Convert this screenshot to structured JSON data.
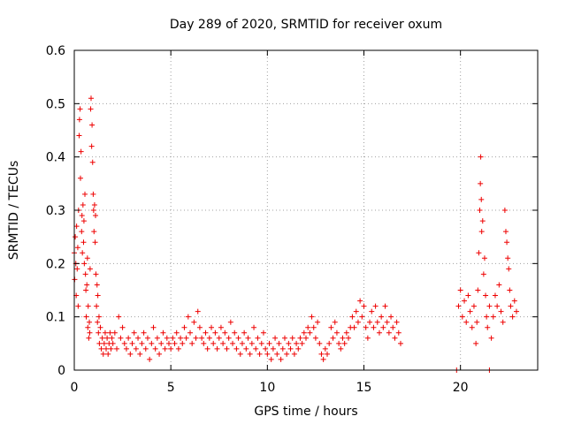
{
  "chart_data": {
    "type": "scatter",
    "title": "Day 289 of 2020, SRMTID for receiver oxum",
    "xlabel": "GPS time / hours",
    "ylabel": "SRMTID / TECUs",
    "xlim": [
      0,
      24
    ],
    "ylim": [
      0,
      0.6
    ],
    "x_ticks": [
      0,
      5,
      10,
      15,
      20
    ],
    "x_tick_labels": [
      "0",
      "5",
      "10",
      "15",
      "20"
    ],
    "y_ticks": [
      0,
      0.1,
      0.2,
      0.3,
      0.4,
      0.5,
      0.6
    ],
    "y_tick_labels": [
      "0",
      "0.1",
      "0.2",
      "0.3",
      "0.4",
      "0.5",
      "0.6"
    ],
    "grid": true,
    "marker": "+",
    "series": [
      {
        "name": "SRMTID",
        "color": "#ee0000",
        "points": [
          [
            0.0,
            0.22
          ],
          [
            0.02,
            0.17
          ],
          [
            0.05,
            0.25
          ],
          [
            0.08,
            0.2
          ],
          [
            0.1,
            0.14
          ],
          [
            0.12,
            0.27
          ],
          [
            0.15,
            0.19
          ],
          [
            0.18,
            0.23
          ],
          [
            0.2,
            0.12
          ],
          [
            0.22,
            0.3
          ],
          [
            0.25,
            0.44
          ],
          [
            0.27,
            0.47
          ],
          [
            0.3,
            0.49
          ],
          [
            0.32,
            0.36
          ],
          [
            0.35,
            0.41
          ],
          [
            0.38,
            0.26
          ],
          [
            0.4,
            0.29
          ],
          [
            0.42,
            0.22
          ],
          [
            0.45,
            0.31
          ],
          [
            0.48,
            0.24
          ],
          [
            0.5,
            0.28
          ],
          [
            0.52,
            0.2
          ],
          [
            0.55,
            0.33
          ],
          [
            0.58,
            0.18
          ],
          [
            0.6,
            0.15
          ],
          [
            0.62,
            0.1
          ],
          [
            0.65,
            0.16
          ],
          [
            0.68,
            0.21
          ],
          [
            0.7,
            0.08
          ],
          [
            0.72,
            0.12
          ],
          [
            0.75,
            0.06
          ],
          [
            0.78,
            0.09
          ],
          [
            0.8,
            0.07
          ],
          [
            0.82,
            0.19
          ],
          [
            0.85,
            0.49
          ],
          [
            0.87,
            0.51
          ],
          [
            0.9,
            0.42
          ],
          [
            0.92,
            0.46
          ],
          [
            0.95,
            0.39
          ],
          [
            0.98,
            0.33
          ],
          [
            1.0,
            0.3
          ],
          [
            1.02,
            0.26
          ],
          [
            1.05,
            0.31
          ],
          [
            1.08,
            0.24
          ],
          [
            1.1,
            0.29
          ],
          [
            1.12,
            0.18
          ],
          [
            1.15,
            0.12
          ],
          [
            1.18,
            0.16
          ],
          [
            1.2,
            0.09
          ],
          [
            1.22,
            0.14
          ],
          [
            1.25,
            0.07
          ],
          [
            1.28,
            0.1
          ],
          [
            1.3,
            0.05
          ],
          [
            1.35,
            0.08
          ],
          [
            1.4,
            0.04
          ],
          [
            1.45,
            0.06
          ],
          [
            1.5,
            0.03
          ],
          [
            1.55,
            0.05
          ],
          [
            1.6,
            0.07
          ],
          [
            1.65,
            0.04
          ],
          [
            1.7,
            0.06
          ],
          [
            1.75,
            0.03
          ],
          [
            1.8,
            0.05
          ],
          [
            1.85,
            0.07
          ],
          [
            1.9,
            0.04
          ],
          [
            1.95,
            0.06
          ],
          [
            2.0,
            0.05
          ],
          [
            2.1,
            0.07
          ],
          [
            2.2,
            0.04
          ],
          [
            2.3,
            0.1
          ],
          [
            2.4,
            0.06
          ],
          [
            2.5,
            0.08
          ],
          [
            2.6,
            0.05
          ],
          [
            2.7,
            0.04
          ],
          [
            2.8,
            0.06
          ],
          [
            2.9,
            0.03
          ],
          [
            3.0,
            0.05
          ],
          [
            3.1,
            0.07
          ],
          [
            3.2,
            0.04
          ],
          [
            3.3,
            0.06
          ],
          [
            3.4,
            0.03
          ],
          [
            3.5,
            0.05
          ],
          [
            3.6,
            0.07
          ],
          [
            3.7,
            0.04
          ],
          [
            3.8,
            0.06
          ],
          [
            3.9,
            0.02
          ],
          [
            4.0,
            0.05
          ],
          [
            4.1,
            0.08
          ],
          [
            4.2,
            0.04
          ],
          [
            4.3,
            0.06
          ],
          [
            4.4,
            0.03
          ],
          [
            4.5,
            0.05
          ],
          [
            4.6,
            0.07
          ],
          [
            4.7,
            0.04
          ],
          [
            4.8,
            0.06
          ],
          [
            4.9,
            0.05
          ],
          [
            5.0,
            0.04
          ],
          [
            5.1,
            0.06
          ],
          [
            5.2,
            0.05
          ],
          [
            5.3,
            0.07
          ],
          [
            5.4,
            0.04
          ],
          [
            5.5,
            0.06
          ],
          [
            5.6,
            0.05
          ],
          [
            5.7,
            0.08
          ],
          [
            5.8,
            0.06
          ],
          [
            5.9,
            0.1
          ],
          [
            6.0,
            0.07
          ],
          [
            6.1,
            0.05
          ],
          [
            6.2,
            0.09
          ],
          [
            6.3,
            0.06
          ],
          [
            6.4,
            0.11
          ],
          [
            6.5,
            0.08
          ],
          [
            6.6,
            0.06
          ],
          [
            6.7,
            0.05
          ],
          [
            6.8,
            0.07
          ],
          [
            6.9,
            0.04
          ],
          [
            7.0,
            0.06
          ],
          [
            7.1,
            0.08
          ],
          [
            7.2,
            0.05
          ],
          [
            7.3,
            0.07
          ],
          [
            7.4,
            0.04
          ],
          [
            7.5,
            0.06
          ],
          [
            7.6,
            0.08
          ],
          [
            7.7,
            0.05
          ],
          [
            7.8,
            0.07
          ],
          [
            7.9,
            0.04
          ],
          [
            8.0,
            0.06
          ],
          [
            8.1,
            0.09
          ],
          [
            8.2,
            0.05
          ],
          [
            8.3,
            0.07
          ],
          [
            8.4,
            0.04
          ],
          [
            8.5,
            0.06
          ],
          [
            8.6,
            0.03
          ],
          [
            8.7,
            0.05
          ],
          [
            8.8,
            0.07
          ],
          [
            8.9,
            0.04
          ],
          [
            9.0,
            0.06
          ],
          [
            9.1,
            0.03
          ],
          [
            9.2,
            0.05
          ],
          [
            9.3,
            0.08
          ],
          [
            9.4,
            0.04
          ],
          [
            9.5,
            0.06
          ],
          [
            9.6,
            0.03
          ],
          [
            9.7,
            0.05
          ],
          [
            9.8,
            0.07
          ],
          [
            9.9,
            0.04
          ],
          [
            10.0,
            0.03
          ],
          [
            10.1,
            0.05
          ],
          [
            10.2,
            0.02
          ],
          [
            10.3,
            0.04
          ],
          [
            10.4,
            0.06
          ],
          [
            10.5,
            0.03
          ],
          [
            10.6,
            0.05
          ],
          [
            10.7,
            0.02
          ],
          [
            10.8,
            0.04
          ],
          [
            10.9,
            0.06
          ],
          [
            11.0,
            0.03
          ],
          [
            11.1,
            0.05
          ],
          [
            11.2,
            0.04
          ],
          [
            11.3,
            0.06
          ],
          [
            11.4,
            0.03
          ],
          [
            11.5,
            0.05
          ],
          [
            11.6,
            0.04
          ],
          [
            11.7,
            0.06
          ],
          [
            11.8,
            0.05
          ],
          [
            11.9,
            0.07
          ],
          [
            12.0,
            0.06
          ],
          [
            12.1,
            0.08
          ],
          [
            12.2,
            0.07
          ],
          [
            12.3,
            0.1
          ],
          [
            12.4,
            0.08
          ],
          [
            12.5,
            0.06
          ],
          [
            12.6,
            0.09
          ],
          [
            12.7,
            0.05
          ],
          [
            12.8,
            0.03
          ],
          [
            12.9,
            0.02
          ],
          [
            13.0,
            0.04
          ],
          [
            13.1,
            0.03
          ],
          [
            13.2,
            0.05
          ],
          [
            13.3,
            0.08
          ],
          [
            13.4,
            0.06
          ],
          [
            13.5,
            0.09
          ],
          [
            13.6,
            0.07
          ],
          [
            13.7,
            0.05
          ],
          [
            13.8,
            0.04
          ],
          [
            13.9,
            0.06
          ],
          [
            14.0,
            0.05
          ],
          [
            14.1,
            0.07
          ],
          [
            14.2,
            0.06
          ],
          [
            14.3,
            0.08
          ],
          [
            14.4,
            0.1
          ],
          [
            14.5,
            0.08
          ],
          [
            14.6,
            0.11
          ],
          [
            14.7,
            0.09
          ],
          [
            14.8,
            0.13
          ],
          [
            14.9,
            0.1
          ],
          [
            15.0,
            0.12
          ],
          [
            15.1,
            0.08
          ],
          [
            15.2,
            0.06
          ],
          [
            15.3,
            0.09
          ],
          [
            15.4,
            0.11
          ],
          [
            15.5,
            0.08
          ],
          [
            15.6,
            0.12
          ],
          [
            15.7,
            0.09
          ],
          [
            15.8,
            0.07
          ],
          [
            15.9,
            0.1
          ],
          [
            16.0,
            0.08
          ],
          [
            16.1,
            0.12
          ],
          [
            16.2,
            0.09
          ],
          [
            16.3,
            0.07
          ],
          [
            16.4,
            0.1
          ],
          [
            16.5,
            0.08
          ],
          [
            16.6,
            0.06
          ],
          [
            16.7,
            0.09
          ],
          [
            16.8,
            0.07
          ],
          [
            16.9,
            0.05
          ],
          [
            19.8,
            0.0
          ],
          [
            21.5,
            0.0
          ],
          [
            19.9,
            0.12
          ],
          [
            20.0,
            0.15
          ],
          [
            20.1,
            0.1
          ],
          [
            20.2,
            0.13
          ],
          [
            20.3,
            0.09
          ],
          [
            20.4,
            0.14
          ],
          [
            20.5,
            0.11
          ],
          [
            20.6,
            0.08
          ],
          [
            20.7,
            0.12
          ],
          [
            20.8,
            0.05
          ],
          [
            20.85,
            0.09
          ],
          [
            20.9,
            0.15
          ],
          [
            20.95,
            0.22
          ],
          [
            21.0,
            0.3
          ],
          [
            21.03,
            0.35
          ],
          [
            21.05,
            0.4
          ],
          [
            21.08,
            0.32
          ],
          [
            21.1,
            0.26
          ],
          [
            21.15,
            0.28
          ],
          [
            21.2,
            0.18
          ],
          [
            21.25,
            0.21
          ],
          [
            21.3,
            0.14
          ],
          [
            21.35,
            0.1
          ],
          [
            21.4,
            0.08
          ],
          [
            21.5,
            0.12
          ],
          [
            21.6,
            0.06
          ],
          [
            21.7,
            0.1
          ],
          [
            21.8,
            0.14
          ],
          [
            21.9,
            0.12
          ],
          [
            22.0,
            0.16
          ],
          [
            22.1,
            0.11
          ],
          [
            22.2,
            0.09
          ],
          [
            22.3,
            0.3
          ],
          [
            22.35,
            0.26
          ],
          [
            22.4,
            0.24
          ],
          [
            22.45,
            0.21
          ],
          [
            22.5,
            0.19
          ],
          [
            22.55,
            0.15
          ],
          [
            22.6,
            0.12
          ],
          [
            22.7,
            0.1
          ],
          [
            22.8,
            0.13
          ],
          [
            22.9,
            0.11
          ]
        ]
      }
    ]
  }
}
